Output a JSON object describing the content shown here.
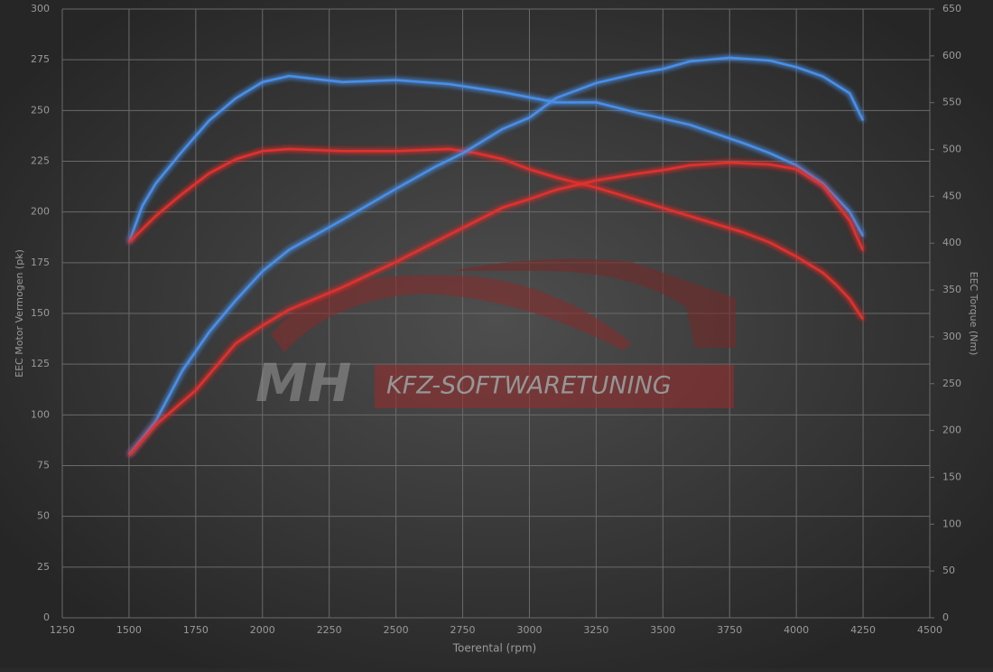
{
  "chart_data": {
    "type": "line",
    "xlabel": "Toerental (rpm)",
    "ylabel": "EEC Motor Vermogen (pk)",
    "y2label": "EEC Torque (Nm)",
    "watermark": [
      "MH",
      "KFZ-SOFTWARETUNING"
    ],
    "xlim": [
      1250,
      4500
    ],
    "xticks": [
      1250,
      1500,
      1750,
      2000,
      2250,
      2500,
      2750,
      3000,
      3250,
      3500,
      3750,
      4000,
      4250,
      4500
    ],
    "ylim": [
      0,
      300
    ],
    "yticks": [
      0,
      25,
      50,
      75,
      100,
      125,
      150,
      175,
      200,
      225,
      250,
      275,
      300
    ],
    "y2lim": [
      0,
      650
    ],
    "y2ticks": [
      0,
      50,
      100,
      150,
      200,
      250,
      300,
      350,
      400,
      450,
      500,
      550,
      600,
      650
    ],
    "grid": true,
    "series": [
      {
        "color": "#4a8fe8",
        "x": [
          1500,
          1550,
          1600,
          1700,
          1800,
          1900,
          2000,
          2100,
          2300,
          2500,
          2700,
          2900,
          3100,
          3250,
          3400,
          3600,
          3800,
          3900,
          4000,
          4100,
          4200,
          4250
        ],
        "values": [
          185,
          203,
          214,
          230,
          245,
          256,
          264,
          267,
          264,
          265,
          263,
          259,
          254,
          254,
          249,
          243,
          234,
          229,
          223,
          214,
          200,
          188
        ]
      },
      {
        "color": "#e0302e",
        "x": [
          1500,
          1600,
          1700,
          1800,
          1900,
          2000,
          2100,
          2300,
          2500,
          2700,
          2800,
          2900,
          3000,
          3100,
          3250,
          3400,
          3600,
          3800,
          3900,
          4000,
          4100,
          4150,
          4200,
          4250
        ],
        "values": [
          185,
          198,
          209,
          219,
          226,
          230,
          231,
          230,
          230,
          231,
          229,
          226,
          221,
          217,
          212,
          206,
          198,
          190,
          185,
          178,
          170,
          164,
          157,
          147
        ]
      },
      {
        "color": "#4a8fe8",
        "axis": "y2",
        "x": [
          1500,
          1600,
          1700,
          1800,
          1900,
          2000,
          2100,
          2300,
          2500,
          2650,
          2750,
          2900,
          3000,
          3100,
          3250,
          3400,
          3500,
          3600,
          3750,
          3900,
          4000,
          4100,
          4200,
          4250
        ],
        "values": [
          174,
          210,
          264,
          305,
          339,
          370,
          393,
          425,
          458,
          482,
          496,
          522,
          534,
          555,
          571,
          581,
          586,
          594,
          598,
          595,
          588,
          578,
          560,
          531
        ]
      },
      {
        "color": "#e0302e",
        "axis": "y2",
        "x": [
          1500,
          1600,
          1750,
          1900,
          2000,
          2100,
          2300,
          2500,
          2700,
          2900,
          3000,
          3100,
          3250,
          3400,
          3500,
          3600,
          3750,
          3900,
          4000,
          4100,
          4200,
          4250
        ],
        "values": [
          173,
          206,
          243,
          293,
          312,
          329,
          353,
          380,
          409,
          438,
          447,
          457,
          467,
          474,
          478,
          483,
          486,
          484,
          479,
          461,
          424,
          392
        ]
      }
    ]
  }
}
